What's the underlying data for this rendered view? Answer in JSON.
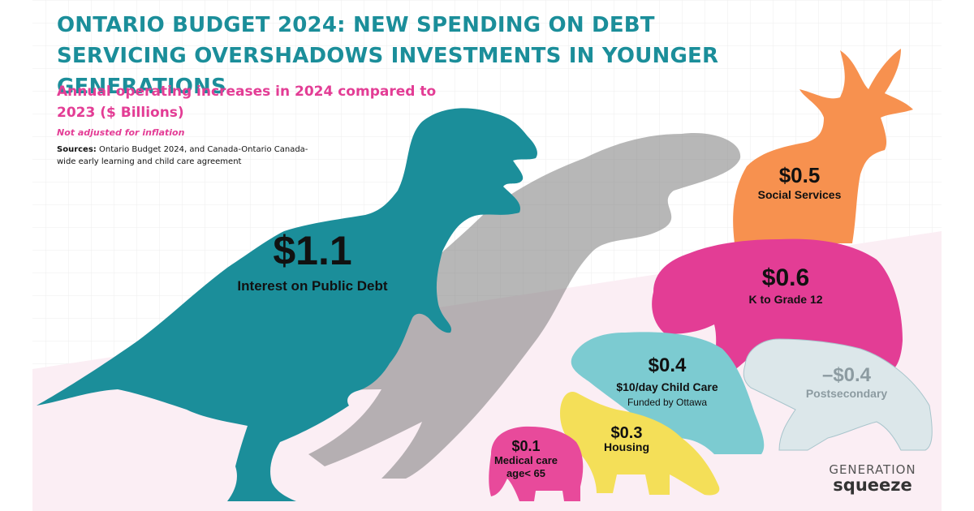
{
  "header": {
    "title": "ONTARIO BUDGET 2024: NEW SPENDING ON DEBT SERVICING OVERSHADOWS INVESTMENTS IN YOUNGER GENERATIONS",
    "subtitle": "Annual operating increases in 2024 compared to 2023 ($ Billions)",
    "note": "Not adjusted for inflation",
    "sources_label": "Sources:",
    "sources_text": "Ontario Budget 2024, and Canada-Ontario Canada-wide early learning and child care agreement"
  },
  "brand": {
    "line1": "GENERATION",
    "line2": "squeeze"
  },
  "colors": {
    "title": "#1b8e9a",
    "accent": "#e33d95",
    "dino": "#1b8e9a",
    "deer": "#f7914f",
    "bear_k12": "#e33d95",
    "bear_childcare": "#7ccbd1",
    "bear_post": "#dce7ea",
    "fox": "#f4df58",
    "elephant": "#e84a9b"
  },
  "chart_data": {
    "type": "bar",
    "title": "ONTARIO BUDGET 2024: NEW SPENDING ON DEBT SERVICING OVERSHADOWS INVESTMENTS IN YOUNGER GENERATIONS",
    "subtitle": "Annual operating increases in 2024 compared to 2023 ($ Billions)",
    "categories": [
      "Interest on Public Debt",
      "K to Grade 12",
      "Social Services",
      "$10/day Child Care",
      "Housing",
      "Medical care age< 65",
      "Postsecondary"
    ],
    "values": [
      1.1,
      0.6,
      0.5,
      0.4,
      0.3,
      0.1,
      -0.4
    ],
    "labels": [
      "$1.1",
      "$0.6",
      "$0.5",
      "$0.4",
      "$0.3",
      "$0.1",
      "–$0.4"
    ],
    "notes": [
      "",
      "",
      "",
      "Funded by Ottawa",
      "",
      "",
      ""
    ],
    "icons": [
      "t-rex-icon",
      "bear-icon",
      "deer-icon",
      "bear-cub-icon",
      "fox-icon",
      "elephant-icon",
      "polar-bear-icon"
    ]
  }
}
